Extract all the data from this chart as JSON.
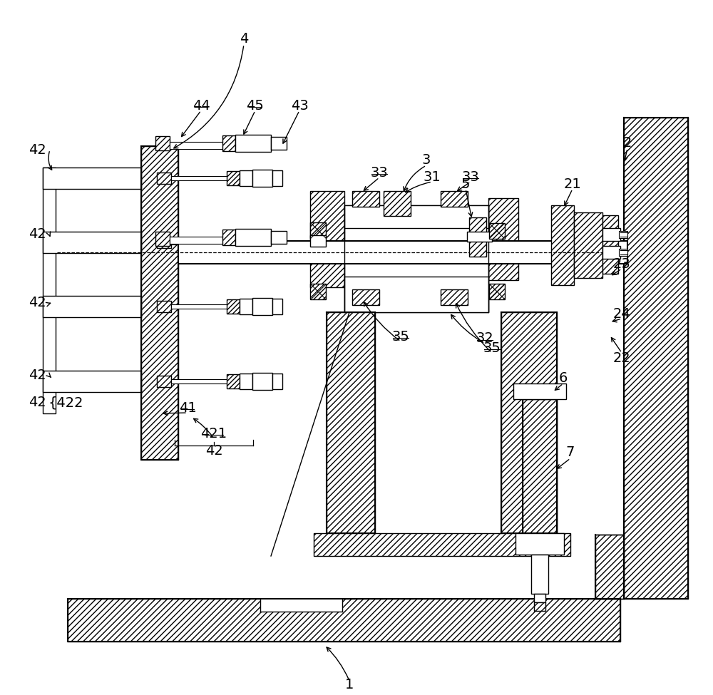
{
  "bg_color": "#ffffff",
  "line_color": "#000000",
  "figsize": [
    10.0,
    9.75
  ],
  "dpi": 100,
  "hatch": "////"
}
